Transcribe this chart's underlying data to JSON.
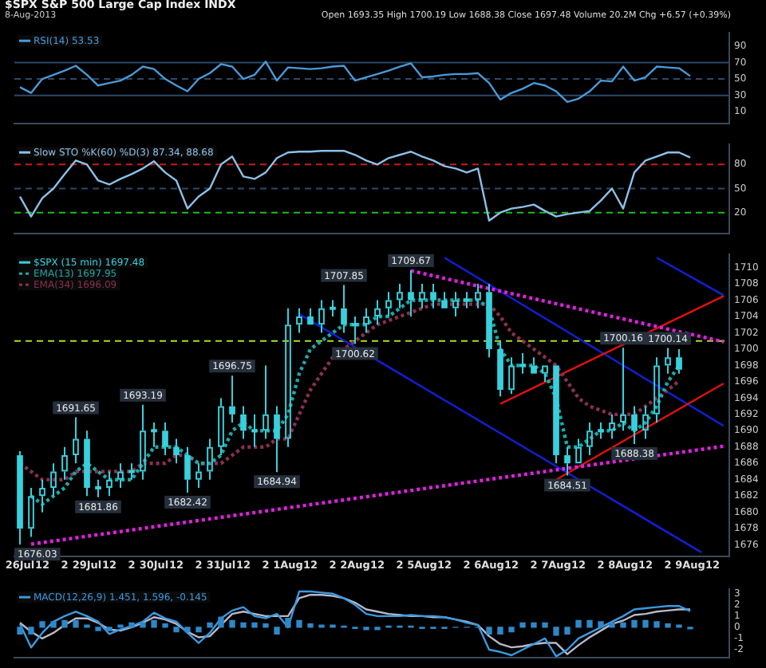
{
  "chart_data": [
    {
      "type": "line",
      "title": "$SPX S&P 500 Large Cap Index INDX",
      "subtitle": "8-Aug-2013",
      "annotations": [
        "Open 1693.35 High 1700.19 Low 1688.38 Close 1697.48 Volume 20.2M Chg +6.57 (+0.39%)"
      ],
      "categories": [
        null,
        null,
        null,
        null,
        null,
        null,
        null,
        null,
        null,
        null,
        null,
        null,
        null,
        null,
        null,
        null,
        null,
        null,
        null,
        null,
        null,
        null,
        null,
        null,
        null,
        null,
        null,
        null,
        null,
        null,
        null,
        null,
        null,
        null,
        null,
        null,
        null,
        null,
        null,
        null,
        null,
        null,
        null,
        null,
        null,
        null,
        null,
        null,
        null,
        null,
        null,
        null,
        null,
        null,
        null,
        null,
        null,
        null,
        null,
        null,
        null,
        null,
        null,
        null
      ],
      "ylim": [
        -4,
        106
      ],
      "yticks": [
        10,
        30,
        50,
        70,
        90
      ],
      "legend": "top left",
      "ref_lines": [
        {
          "axis": "y",
          "value": 70,
          "color": "#2c4a6a",
          "line_style": "solid"
        },
        {
          "axis": "y",
          "value": 50,
          "color": "#2c4a6a",
          "line_style": "dashed"
        },
        {
          "axis": "y",
          "value": 30,
          "color": "#2c4a6a",
          "line_style": "solid"
        }
      ],
      "series": [
        {
          "name": "RSI(14) 53.53",
          "color": "#4a9ad8",
          "values": [
            40,
            33,
            50,
            55,
            60,
            66,
            55,
            42,
            45,
            48,
            55,
            65,
            62,
            50,
            42,
            35,
            50,
            57,
            68,
            65,
            50,
            55,
            71,
            48,
            64,
            63,
            62,
            63,
            65,
            66,
            48,
            52,
            56,
            60,
            65,
            69,
            52,
            53,
            55,
            56,
            56,
            57,
            45,
            25,
            33,
            38,
            45,
            42,
            35,
            22,
            26,
            35,
            48,
            47,
            65,
            48,
            52,
            65,
            64,
            63,
            53.53,
            null,
            null,
            null
          ]
        }
      ]
    },
    {
      "type": "line",
      "categories": [
        null,
        null,
        null,
        null,
        null,
        null,
        null,
        null,
        null,
        null,
        null,
        null,
        null,
        null,
        null,
        null,
        null,
        null,
        null,
        null,
        null,
        null,
        null,
        null,
        null,
        null,
        null,
        null,
        null,
        null,
        null,
        null,
        null,
        null,
        null,
        null,
        null,
        null,
        null,
        null,
        null,
        null,
        null,
        null,
        null,
        null,
        null,
        null,
        null,
        null,
        null,
        null,
        null,
        null,
        null,
        null,
        null,
        null,
        null,
        null,
        null,
        null,
        null,
        null
      ],
      "ylim": [
        -6,
        105
      ],
      "yticks": [
        20,
        50,
        80
      ],
      "legend": "top left",
      "ref_lines": [
        {
          "axis": "y",
          "value": 80,
          "color": "#d01818",
          "line_style": "dashed"
        },
        {
          "axis": "y",
          "value": 50,
          "color": "#2c4a6a",
          "line_style": "dashed"
        },
        {
          "axis": "y",
          "value": 20,
          "color": "#18c018",
          "line_style": "dashed"
        }
      ],
      "series": [
        {
          "name": "Slow STO %K(60) %D(3) 87.34, 88.68",
          "color": "#8cc0e8",
          "values": [
            40,
            15,
            38,
            50,
            68,
            85,
            80,
            60,
            55,
            62,
            68,
            75,
            84,
            70,
            60,
            25,
            40,
            50,
            80,
            90,
            65,
            62,
            70,
            88,
            95,
            96,
            96,
            97,
            97,
            97,
            92,
            85,
            80,
            88,
            92,
            96,
            90,
            85,
            78,
            75,
            70,
            75,
            10,
            20,
            25,
            27,
            30,
            22,
            15,
            18,
            20,
            22,
            35,
            50,
            25,
            70,
            85,
            90,
            95,
            95,
            88.68,
            null,
            null,
            null
          ]
        }
      ]
    },
    {
      "type": "candlestick",
      "categories": [
        "26Jul",
        null,
        "12",
        null,
        "2",
        null,
        "29Jul",
        null,
        "12",
        null,
        "2",
        null,
        "30Jul",
        null,
        "12",
        null,
        "2",
        null,
        "31Jul",
        null,
        "12",
        null,
        "2",
        null,
        "1Aug",
        null,
        "12",
        null,
        "2",
        null,
        "2Aug",
        null,
        "12",
        null,
        "2",
        null,
        "5Aug",
        null,
        "12",
        null,
        "2",
        null,
        "6Aug",
        null,
        "12",
        null,
        "2",
        null,
        "7Aug",
        null,
        "12",
        null,
        "2",
        null,
        "8Aug",
        null,
        "12",
        null,
        "2",
        null,
        "9Aug",
        null,
        "12",
        null
      ],
      "ylim": [
        1674.6,
        1711.6
      ],
      "yticks": [
        1676,
        1678,
        1680,
        1682,
        1684,
        1686,
        1688,
        1690,
        1692,
        1694,
        1696,
        1698,
        1700,
        1702,
        1704,
        1706,
        1708,
        1710
      ],
      "legend": "top left",
      "ref_lines": [
        {
          "axis": "y",
          "value": 1701,
          "color": "#a8e020",
          "line_style": "dashed"
        }
      ],
      "annotations": [
        {
          "text": "1676.03",
          "y": 1676.03
        },
        {
          "text": "1691.65",
          "y": 1691.65
        },
        {
          "text": "1681.86",
          "y": 1681.86
        },
        {
          "text": "1693.19",
          "y": 1693.19
        },
        {
          "text": "1682.42",
          "y": 1682.42
        },
        {
          "text": "1696.75",
          "y": 1696.75
        },
        {
          "text": "1684.94",
          "y": 1684.94
        },
        {
          "text": "1707.85",
          "y": 1707.85
        },
        {
          "text": "1700.62",
          "y": 1700.62
        },
        {
          "text": "1709.67",
          "y": 1709.67
        },
        {
          "text": "1684.51",
          "y": 1684.51
        },
        {
          "text": "1700.16",
          "y": 1700.16
        },
        {
          "text": "1688.38",
          "y": 1688.38
        },
        {
          "text": "1700.14",
          "y": 1700.14
        }
      ],
      "series": [
        {
          "type": "candlestick",
          "name": "$SPX (15 min) 1697.48",
          "color": "#38d0dc",
          "ohlc": [
            [
              1687,
              1687.5,
              1676.03,
              1678
            ],
            [
              1678,
              1683,
              1677,
              1682
            ],
            [
              1682,
              1684,
              1680,
              1683
            ],
            [
              1683,
              1686,
              1682,
              1685
            ],
            [
              1685,
              1688,
              1684,
              1687
            ],
            [
              1687,
              1691.65,
              1686,
              1689
            ],
            [
              1689,
              1690,
              1682,
              1683
            ],
            [
              1683,
              1684,
              1681.86,
              1683
            ],
            [
              1683,
              1685,
              1682,
              1684
            ],
            [
              1684,
              1686,
              1683,
              1685
            ],
            [
              1685,
              1686,
              1684,
              1685
            ],
            [
              1685,
              1693.19,
              1684,
              1690
            ],
            [
              1690,
              1691,
              1688,
              1690
            ],
            [
              1690,
              1691,
              1687,
              1688
            ],
            [
              1688,
              1689,
              1686,
              1687
            ],
            [
              1687,
              1688,
              1682.42,
              1684
            ],
            [
              1684,
              1686,
              1683,
              1685
            ],
            [
              1685,
              1689,
              1684,
              1688
            ],
            [
              1688,
              1694,
              1687,
              1693
            ],
            [
              1693,
              1696.75,
              1691,
              1692
            ],
            [
              1692,
              1693,
              1689,
              1690
            ],
            [
              1690,
              1692,
              1688,
              1690
            ],
            [
              1690,
              1698,
              1689,
              1692
            ],
            [
              1692,
              1693,
              1684.94,
              1689
            ],
            [
              1689,
              1705,
              1688,
              1703
            ],
            [
              1703,
              1705,
              1702,
              1704
            ],
            [
              1704,
              1705,
              1703,
              1703
            ],
            [
              1703,
              1706,
              1702,
              1705
            ],
            [
              1705,
              1706,
              1704,
              1705
            ],
            [
              1705,
              1707.85,
              1702,
              1703
            ],
            [
              1703,
              1704,
              1700.62,
              1703
            ],
            [
              1703,
              1705,
              1702,
              1704
            ],
            [
              1704,
              1706,
              1703,
              1705
            ],
            [
              1705,
              1707,
              1704,
              1706
            ],
            [
              1706,
              1708,
              1705,
              1707
            ],
            [
              1707,
              1709.67,
              1704,
              1706
            ],
            [
              1706,
              1708,
              1705,
              1707
            ],
            [
              1707,
              1708,
              1705,
              1706
            ],
            [
              1706,
              1707,
              1705,
              1705
            ],
            [
              1705,
              1707,
              1704,
              1706
            ],
            [
              1706,
              1707,
              1705,
              1706
            ],
            [
              1706,
              1708,
              1705,
              1707
            ],
            [
              1707,
              1708,
              1699,
              1700
            ],
            [
              1700,
              1701,
              1694.2,
              1695
            ],
            [
              1695,
              1699,
              1694.5,
              1698
            ],
            [
              1698,
              1699.5,
              1697,
              1698
            ],
            [
              1698,
              1699,
              1697,
              1697
            ],
            [
              1697,
              1698,
              1696,
              1698
            ],
            [
              1698,
              1698,
              1686,
              1687
            ],
            [
              1687,
              1688,
              1684.51,
              1686
            ],
            [
              1686,
              1689,
              1686,
              1688
            ],
            [
              1688,
              1691,
              1687,
              1690
            ],
            [
              1690,
              1691,
              1689,
              1690
            ],
            [
              1690,
              1692,
              1689,
              1691
            ],
            [
              1691,
              1700.16,
              1690,
              1692
            ],
            [
              1692,
              1693,
              1688.38,
              1690
            ],
            [
              1690,
              1693,
              1689,
              1692
            ],
            [
              1692,
              1699,
              1691,
              1698
            ],
            [
              1698,
              1700.14,
              1697,
              1699
            ],
            [
              1699,
              1700,
              1697,
              1697.48
            ],
            null,
            null,
            null,
            null
          ]
        },
        {
          "type": "line",
          "name": "EMA(13) 1697.95",
          "color": "#1fa8a8",
          "line_style": "dotted",
          "values": [
            null,
            1682,
            1681,
            1682,
            1683,
            1685,
            1686,
            1685,
            1684,
            1684,
            1684,
            1686,
            1688,
            1688,
            1688,
            1687,
            1686,
            1686,
            1687,
            1690,
            1691,
            1690,
            1690,
            1690,
            1692,
            1697,
            1700,
            1701,
            1702,
            1703,
            1703,
            1703,
            1704,
            1704,
            1705,
            1706,
            1706,
            1706,
            1706,
            1706,
            1706,
            1706,
            1705,
            1700,
            1698,
            1698,
            1698,
            1697,
            1694,
            1688,
            1688,
            1689,
            1690,
            1690,
            1691,
            1690,
            1691,
            1693,
            1696,
            1697.95,
            null,
            null,
            null,
            null
          ]
        },
        {
          "type": "line",
          "name": "EMA(34) 1696.09",
          "color": "#8a3050",
          "line_style": "dotted",
          "values": [
            1686,
            1685,
            1684,
            1684,
            1684,
            1685,
            1685,
            1685,
            1685,
            1685,
            1685,
            1686,
            1686,
            1686,
            1687,
            1687,
            1686,
            1686,
            1686,
            1687,
            1688,
            1688,
            1688,
            1689,
            1689,
            1692,
            1695,
            1697,
            1699,
            1700,
            1701,
            1702,
            1703,
            1703.5,
            1704,
            1704.5,
            1705,
            1705.5,
            1705.5,
            1705.5,
            1705.5,
            1705.5,
            1705.5,
            1704,
            1702,
            1701,
            1700,
            1699,
            1698,
            1696,
            1694,
            1693,
            1692.5,
            1692,
            1692,
            1692,
            1693,
            1694,
            1695,
            1696.09,
            null,
            null,
            null,
            null
          ]
        },
        {
          "type": "line",
          "color": "#e020e0",
          "line_style": "dotted",
          "values": [
            null,
            null,
            null,
            null,
            null,
            null,
            null,
            null,
            null,
            null,
            null,
            null,
            null,
            null,
            null,
            null,
            null,
            null,
            null,
            null,
            null,
            null,
            null,
            null,
            null,
            null,
            null,
            null,
            null,
            null,
            null,
            null,
            null,
            null,
            null,
            1709.6,
            null,
            null,
            null,
            null,
            null,
            null,
            null,
            null,
            null,
            null,
            null,
            null,
            null,
            null,
            null,
            null,
            null,
            null,
            null,
            null,
            null,
            null,
            null,
            null,
            null,
            null,
            null,
            1700.9
          ]
        },
        {
          "type": "line",
          "color": "#e020e0",
          "line_style": "dotted",
          "values": [
            null,
            1676.1,
            null,
            null,
            null,
            null,
            null,
            null,
            null,
            null,
            null,
            null,
            null,
            null,
            null,
            null,
            null,
            null,
            null,
            null,
            null,
            null,
            null,
            null,
            null,
            null,
            null,
            null,
            null,
            null,
            null,
            null,
            null,
            null,
            null,
            null,
            null,
            null,
            null,
            null,
            null,
            null,
            null,
            null,
            null,
            null,
            null,
            null,
            null,
            null,
            null,
            null,
            null,
            null,
            null,
            null,
            null,
            null,
            null,
            null,
            null,
            null,
            null,
            1688.1
          ]
        },
        {
          "type": "line",
          "color": "#e01010",
          "line_style": "solid",
          "values": [
            null,
            null,
            null,
            null,
            null,
            null,
            null,
            null,
            null,
            null,
            null,
            null,
            null,
            null,
            null,
            null,
            null,
            null,
            null,
            null,
            null,
            null,
            null,
            null,
            null,
            null,
            null,
            null,
            null,
            null,
            null,
            null,
            null,
            null,
            null,
            null,
            null,
            null,
            null,
            null,
            null,
            null,
            null,
            null,
            null,
            null,
            null,
            null,
            1684.0,
            null,
            null,
            null,
            null,
            null,
            null,
            null,
            null,
            null,
            null,
            null,
            null,
            null,
            null,
            1695.8
          ]
        },
        {
          "type": "line",
          "color": "#e01010",
          "line_style": "solid",
          "values": [
            null,
            null,
            null,
            null,
            null,
            null,
            null,
            null,
            null,
            null,
            null,
            null,
            null,
            null,
            null,
            null,
            null,
            null,
            null,
            null,
            null,
            null,
            null,
            null,
            null,
            null,
            null,
            null,
            null,
            null,
            null,
            null,
            null,
            null,
            null,
            null,
            null,
            null,
            null,
            null,
            null,
            null,
            null,
            1693.3,
            null,
            null,
            null,
            null,
            null,
            null,
            null,
            null,
            null,
            null,
            null,
            null,
            null,
            null,
            null,
            null,
            null,
            null,
            null,
            1706.5
          ]
        },
        {
          "type": "line",
          "color": "#1020d8",
          "line_style": "solid",
          "values": [
            null,
            null,
            null,
            null,
            null,
            null,
            null,
            null,
            null,
            null,
            null,
            null,
            null,
            null,
            null,
            null,
            null,
            null,
            null,
            null,
            null,
            null,
            null,
            null,
            null,
            1704.3,
            null,
            null,
            null,
            null,
            null,
            null,
            null,
            null,
            null,
            null,
            null,
            null,
            null,
            null,
            null,
            null,
            null,
            null,
            null,
            null,
            null,
            null,
            null,
            null,
            null,
            null,
            null,
            null,
            null,
            null,
            null,
            null,
            null,
            null,
            null,
            1675.1,
            null,
            null
          ]
        },
        {
          "type": "line",
          "color": "#1020d8",
          "line_style": "solid",
          "values": [
            null,
            null,
            null,
            null,
            null,
            null,
            null,
            null,
            null,
            null,
            null,
            null,
            null,
            null,
            null,
            null,
            null,
            null,
            null,
            null,
            null,
            null,
            null,
            null,
            null,
            null,
            null,
            null,
            null,
            null,
            null,
            null,
            null,
            null,
            null,
            null,
            null,
            null,
            1711.2,
            null,
            null,
            null,
            null,
            null,
            null,
            null,
            null,
            null,
            null,
            null,
            null,
            null,
            null,
            null,
            null,
            null,
            null,
            null,
            null,
            null,
            null,
            null,
            null,
            1690.6
          ]
        },
        {
          "type": "line",
          "color": "#1020d8",
          "line_style": "solid",
          "values": [
            null,
            null,
            null,
            null,
            null,
            null,
            null,
            null,
            null,
            null,
            null,
            null,
            null,
            null,
            null,
            null,
            null,
            null,
            null,
            null,
            null,
            null,
            null,
            null,
            null,
            null,
            null,
            null,
            null,
            null,
            null,
            null,
            null,
            null,
            null,
            null,
            null,
            null,
            null,
            null,
            null,
            null,
            null,
            null,
            null,
            null,
            null,
            null,
            null,
            null,
            null,
            null,
            null,
            null,
            null,
            null,
            null,
            1711.2,
            null,
            null,
            null,
            null,
            null,
            1706.6
          ]
        }
      ]
    },
    {
      "type": "line",
      "categories": [
        null,
        null,
        null,
        null,
        null,
        null,
        null,
        null,
        null,
        null,
        null,
        null,
        null,
        null,
        null,
        null,
        null,
        null,
        null,
        null,
        null,
        null,
        null,
        null,
        null,
        null,
        null,
        null,
        null,
        null,
        null,
        null,
        null,
        null,
        null,
        null,
        null,
        null,
        null,
        null,
        null,
        null,
        null,
        null,
        null,
        null,
        null,
        null,
        null,
        null,
        null,
        null,
        null,
        null,
        null,
        null,
        null,
        null,
        null,
        null,
        null,
        null,
        null,
        null
      ],
      "ylim": [
        -2.7,
        3.4
      ],
      "yticks": [
        -2,
        -1,
        0,
        1,
        2,
        3
      ],
      "legend": "top left",
      "series": [
        {
          "type": "bar",
          "color": "#2e88c8",
          "values": [
            -0.6,
            -0.6,
            0.5,
            0.5,
            0.6,
            0.6,
            0.2,
            -0.3,
            -0.3,
            0.2,
            0.4,
            0.4,
            0.6,
            0.3,
            -0.4,
            -0.4,
            -0.4,
            0.4,
            0.9,
            0.6,
            0.4,
            0.4,
            0.3,
            -0.6,
            0.8,
            0.6,
            0.3,
            0.2,
            0.2,
            0.1,
            -0.1,
            -0.2,
            -0.2,
            0.1,
            0.1,
            0.1,
            -0.1,
            -0.1,
            -0.1,
            0,
            0,
            0,
            -0.6,
            -0.6,
            -0.4,
            0.4,
            0.4,
            0.4,
            -0.7,
            -0.6,
            0.6,
            0.6,
            0.5,
            0.4,
            0.4,
            0.6,
            0.6,
            0.5,
            0.3,
            0.2,
            -0.145,
            null,
            null,
            null
          ]
        },
        {
          "type": "line",
          "name": "MACD(12,26,9) 1.451, 1.596, -0.145",
          "color": "#3a9ae0",
          "values": [
            0.3,
            -1.8,
            -0.5,
            0.5,
            1.0,
            1.4,
            1.0,
            0.5,
            -0.6,
            -0.2,
            0.1,
            0.5,
            1.3,
            0.8,
            0.5,
            -0.5,
            -1.4,
            -0.5,
            0.8,
            1.5,
            1.8,
            1.0,
            0.8,
            1.2,
            0.0,
            3.2,
            3.2,
            3.1,
            3.0,
            2.6,
            2.0,
            1.2,
            1.0,
            1.0,
            1.0,
            1.1,
            1.0,
            1.0,
            0.9,
            0.7,
            0.4,
            0.2,
            -2.0,
            -2.2,
            -2.5,
            -2.0,
            -1.5,
            -1.0,
            -2.6,
            -2.0,
            -1.0,
            -0.5,
            0.0,
            0.5,
            1.0,
            1.6,
            1.7,
            1.8,
            1.9,
            1.9,
            1.451,
            null,
            null,
            null
          ]
        },
        {
          "type": "line",
          "color": "#b8b8c8",
          "values": [
            0.4,
            -0.4,
            -1.0,
            -0.5,
            0.2,
            0.8,
            0.8,
            0.4,
            -0.2,
            -0.3,
            0.0,
            0.4,
            0.9,
            0.7,
            0.3,
            -0.4,
            -0.9,
            -0.8,
            0.2,
            1.2,
            1.4,
            1.2,
            1.0,
            1.0,
            1.0,
            2.6,
            2.9,
            2.9,
            2.8,
            2.6,
            2.2,
            1.6,
            1.4,
            1.2,
            1.1,
            1.0,
            1.0,
            0.9,
            0.9,
            0.7,
            0.5,
            0.2,
            -0.8,
            -1.5,
            -1.8,
            -1.7,
            -1.5,
            -1.4,
            -1.4,
            -2.4,
            -1.6,
            -0.9,
            -0.3,
            0.3,
            0.6,
            1.1,
            1.2,
            1.4,
            1.5,
            1.6,
            1.596,
            null,
            null,
            null
          ]
        }
      ]
    }
  ]
}
